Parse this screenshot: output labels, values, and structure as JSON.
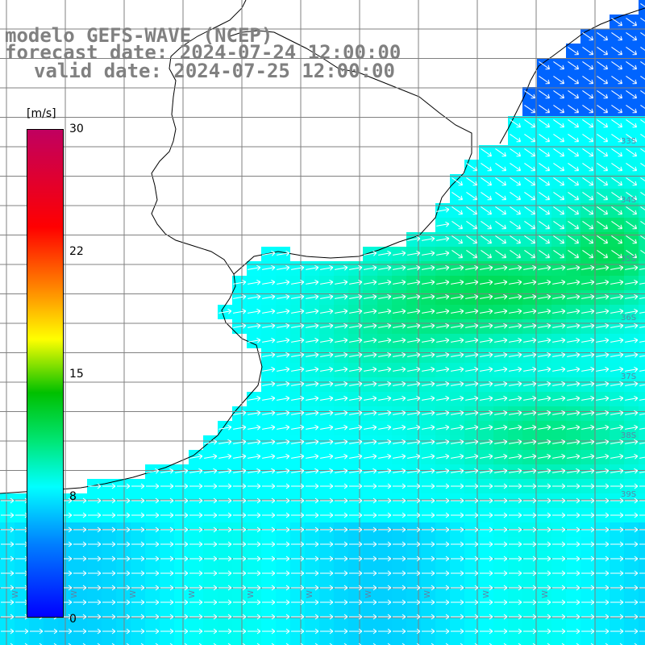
{
  "title": {
    "line1": "modelo GEFS-WAVE (NCEP)",
    "line2": "forecast date: 2024-07-24 12:00:00",
    "line3": "valid date: 2024-07-25 12:00:00"
  },
  "colorbar": {
    "units": "[m/s]",
    "min": 0,
    "max": 30,
    "ticks": [
      "30",
      "22",
      "15",
      "8",
      "0"
    ],
    "tick_values": [
      30,
      22,
      15,
      8,
      0
    ],
    "colors": [
      "#0000ff",
      "#0080ff",
      "#00ffff",
      "#00e676",
      "#00c000",
      "#ffff00",
      "#ff8000",
      "#ff0000",
      "#c00060"
    ]
  },
  "map": {
    "field": "wind speed",
    "land_color": "#ffffff",
    "coast_color": "#000000",
    "grid_color": "#808080",
    "arrow_color": "#ffffff",
    "lat_labels": [
      "33S",
      "34S",
      "35S",
      "36S",
      "37S",
      "38S",
      "39S"
    ],
    "lon_labels": [
      "W",
      "W",
      "W",
      "W",
      "W",
      "W",
      "W",
      "W",
      "W",
      "W"
    ]
  }
}
